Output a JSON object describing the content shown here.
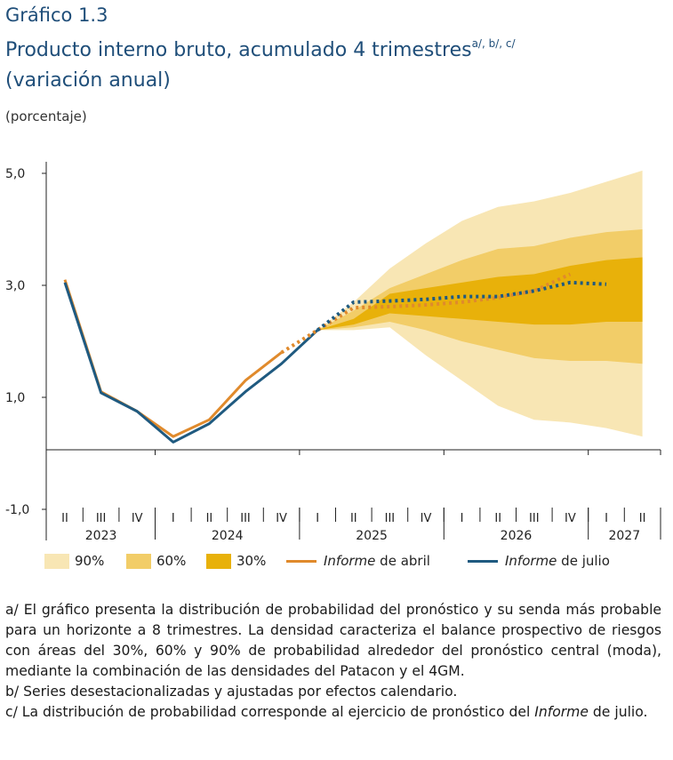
{
  "header": {
    "line1": "Gráfico 1.3",
    "line2": "Producto interno bruto, acumulado 4 trimestres",
    "line2_sup": "a/, b/, c/",
    "line3": "(variación anual)"
  },
  "unit_label": "(porcentaje)",
  "colors": {
    "band90": "#f8e6b4",
    "band60": "#f2cd68",
    "band30": "#e8b10a",
    "april": "#e08a2c",
    "july": "#1f5a80",
    "title": "#1f4e79"
  },
  "chart_data": {
    "type": "line",
    "title": "Producto interno bruto, acumulado 4 trimestres (variación anual)",
    "ylabel": "(porcentaje)",
    "ylim": [
      -1.5,
      5.3
    ],
    "yticks": [
      {
        "v": 5,
        "label": "5,0"
      },
      {
        "v": 3,
        "label": "3,0"
      },
      {
        "v": 1,
        "label": "1,0"
      },
      {
        "v": -1,
        "label": "-1,0"
      }
    ],
    "quarters": [
      "II",
      "III",
      "IV",
      "I",
      "II",
      "III",
      "IV",
      "I",
      "II",
      "III",
      "IV",
      "I",
      "II",
      "III",
      "IV",
      "I",
      "II"
    ],
    "years": [
      {
        "label": "2023",
        "start": 0,
        "end": 2
      },
      {
        "label": "2024",
        "start": 3,
        "end": 6
      },
      {
        "label": "2025",
        "start": 7,
        "end": 10
      },
      {
        "label": "2026",
        "start": 11,
        "end": 14
      },
      {
        "label": "2027",
        "start": 15,
        "end": 16
      }
    ],
    "forecast_start_index": 7,
    "series": [
      {
        "name": "Informe de abril",
        "history": [
          3.1,
          1.1,
          0.75,
          0.3,
          0.6,
          1.3,
          1.8
        ],
        "forecast": [
          1.8,
          2.2,
          2.6,
          2.62,
          2.65,
          2.7,
          2.78,
          2.9,
          3.2
        ]
      },
      {
        "name": "Informe de julio",
        "history": [
          3.05,
          1.08,
          0.75,
          0.2,
          0.53,
          1.1,
          1.6,
          2.2
        ],
        "forecast": [
          2.2,
          2.7,
          2.72,
          2.75,
          2.8,
          2.8,
          2.9,
          3.05,
          3.02
        ]
      }
    ],
    "fan": {
      "x_index": [
        7,
        8,
        9,
        10,
        11,
        12,
        13,
        14,
        15,
        16
      ],
      "p90_upper": [
        2.2,
        2.7,
        3.3,
        3.75,
        4.15,
        4.4,
        4.5,
        4.65,
        4.85,
        5.05
      ],
      "p60_upper": [
        2.2,
        2.55,
        2.95,
        3.2,
        3.45,
        3.65,
        3.7,
        3.85,
        3.95,
        4.0
      ],
      "p30_upper": [
        2.2,
        2.4,
        2.85,
        2.95,
        3.05,
        3.15,
        3.2,
        3.35,
        3.45,
        3.5
      ],
      "p30_lower": [
        2.2,
        2.3,
        2.5,
        2.45,
        2.4,
        2.35,
        2.3,
        2.3,
        2.35,
        2.35
      ],
      "p60_lower": [
        2.2,
        2.25,
        2.35,
        2.2,
        2.0,
        1.85,
        1.7,
        1.65,
        1.65,
        1.6
      ],
      "p90_lower": [
        2.2,
        2.2,
        2.25,
        1.75,
        1.3,
        0.85,
        0.6,
        0.55,
        0.45,
        0.3
      ]
    },
    "legend": [
      {
        "type": "swatch",
        "color_key": "band90",
        "label": "90%"
      },
      {
        "type": "swatch",
        "color_key": "band60",
        "label": "60%"
      },
      {
        "type": "swatch",
        "color_key": "band30",
        "label": "30%"
      },
      {
        "type": "line",
        "color_key": "april",
        "label_italic": "Informe",
        "label_rest": " de abril"
      },
      {
        "type": "line",
        "color_key": "july",
        "label_italic": "Informe",
        "label_rest": " de julio"
      }
    ]
  },
  "notes": {
    "a": "a/ El gráfico presenta la distribución de probabilidad del pronóstico y su senda más probable para un horizonte a 8 trimestres. La densidad caracteriza el balance prospectivo de riesgos con áreas del 30%, 60% y 90% de probabilidad alrededor del pronóstico central (moda), mediante la combinación de las densidades del Patacon y el 4GM.",
    "b": "b/ Series desestacionalizadas y ajustadas por efectos calendario.",
    "c_start": "c/ La distribución de probabilidad corresponde al ejercicio de pronóstico del ",
    "c_italic": "Informe",
    "c_end": " de julio."
  }
}
